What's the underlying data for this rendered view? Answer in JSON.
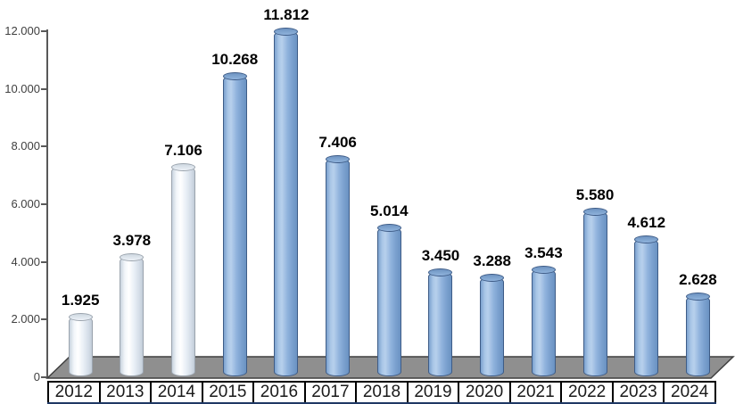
{
  "chart_data": {
    "type": "bar",
    "style": "3d-cylinder",
    "title": "",
    "xlabel": "",
    "ylabel": "",
    "categories": [
      "2012",
      "2013",
      "2014",
      "2015",
      "2016",
      "2017",
      "2018",
      "2019",
      "2020",
      "2021",
      "2022",
      "2023",
      "2024"
    ],
    "values": [
      1925,
      3978,
      7106,
      10268,
      11812,
      7406,
      5014,
      3450,
      3288,
      3543,
      5580,
      4612,
      2628
    ],
    "value_labels": [
      "1.925",
      "3.978",
      "7.106",
      "10.268",
      "11.812",
      "7.406",
      "5.014",
      "3.450",
      "3.288",
      "3.543",
      "5.580",
      "4.612",
      "2.628"
    ],
    "bar_styles": [
      "light",
      "light",
      "light",
      "blue",
      "blue",
      "blue",
      "blue",
      "blue",
      "blue",
      "blue",
      "blue",
      "blue",
      "blue"
    ],
    "ylim": [
      0,
      12000
    ],
    "y_ticks": [
      {
        "label": "0",
        "value": 0
      },
      {
        "label": "2.000",
        "value": 2000
      },
      {
        "label": "4.000",
        "value": 4000
      },
      {
        "label": "6.000",
        "value": 6000
      },
      {
        "label": "8.000",
        "value": 8000
      },
      {
        "label": "10.000",
        "value": 10000
      },
      {
        "label": "12.000",
        "value": 12000
      }
    ],
    "grid": false,
    "legend": "none",
    "colors": {
      "bar_blue_body": "#8fb2dc",
      "bar_blue_border": "#3e5c87",
      "bar_light_body": "#e9eff6",
      "bar_light_border": "#9aa3ad",
      "axis_line": "#595959",
      "y_tick_text": "#3f3f3f",
      "floor_fill": "#8f8f8f",
      "floor_border": "#3f3f3f",
      "x_row_bottom_border": "#1f3864",
      "cell_border": "#000000",
      "value_label_text": "#000000"
    }
  }
}
